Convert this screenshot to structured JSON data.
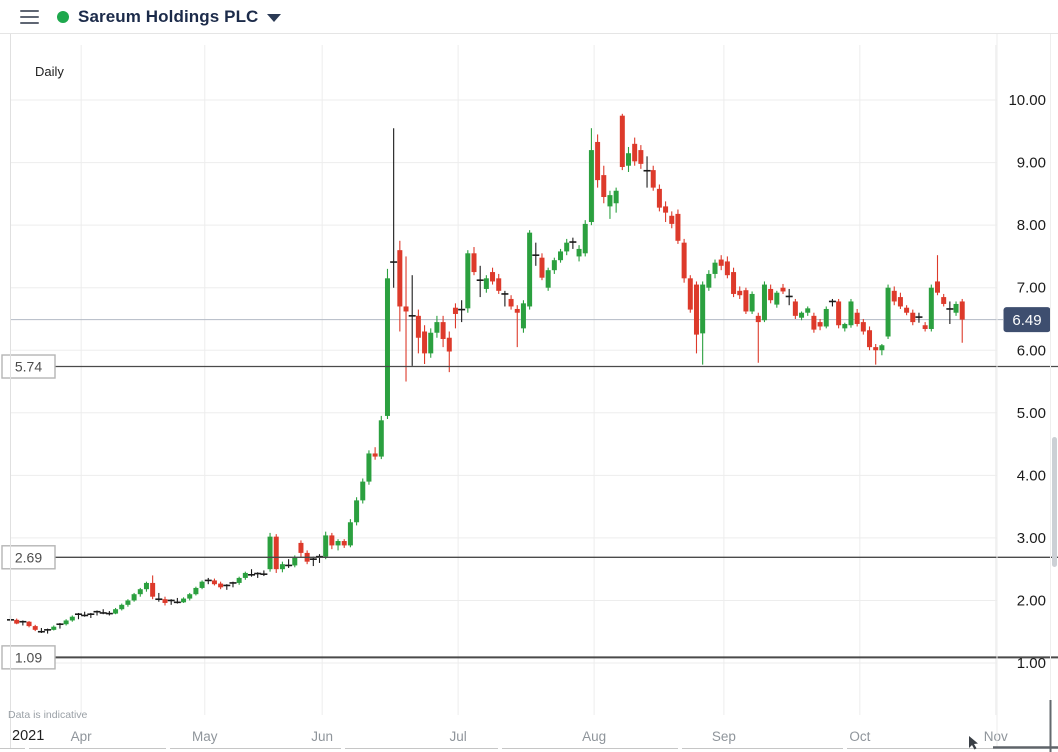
{
  "header": {
    "title": "Sareum Holdings PLC"
  },
  "toolbar": {
    "timeframe": "Daily"
  },
  "footer": {
    "disclaimer": "Data is indicative",
    "year_label": "2021"
  },
  "chart_data": {
    "type": "candlestick",
    "title": "Sareum Holdings PLC",
    "timeframe": "Daily",
    "y_axis": {
      "ticks": [
        10,
        9,
        8,
        7,
        6,
        5,
        4,
        3,
        2,
        1
      ],
      "range": [
        0.4,
        10.9
      ]
    },
    "x_axis": {
      "year": "2021",
      "months": [
        "Apr",
        "May",
        "Jun",
        "Jul",
        "Aug",
        "Sep",
        "Oct",
        "Nov"
      ]
    },
    "support_levels": [
      {
        "label": "5.74",
        "price": 5.74
      },
      {
        "label": "2.69",
        "price": 2.69
      },
      {
        "label": "1.09",
        "price": 1.09
      }
    ],
    "last_price": {
      "label": "6.49",
      "price": 6.49
    },
    "colors": {
      "up": "#2ba03f",
      "down": "#dd3a2b",
      "neutral": "#1a1a1a",
      "badge": "#3e4e6f",
      "grid": "#ededed"
    },
    "candles": [
      [
        1.73,
        1.76,
        1.66,
        1.69
      ],
      [
        1.69,
        1.71,
        1.62,
        1.63
      ],
      [
        1.64,
        1.68,
        1.6,
        1.66
      ],
      [
        1.66,
        1.67,
        1.57,
        1.59
      ],
      [
        1.59,
        1.61,
        1.51,
        1.53
      ],
      [
        1.53,
        1.56,
        1.48,
        1.5
      ],
      [
        1.5,
        1.55,
        1.47,
        1.53
      ],
      [
        1.53,
        1.6,
        1.52,
        1.58
      ],
      [
        1.58,
        1.64,
        1.55,
        1.62
      ],
      [
        1.62,
        1.7,
        1.6,
        1.68
      ],
      [
        1.68,
        1.76,
        1.66,
        1.74
      ],
      [
        1.74,
        1.8,
        1.7,
        1.78
      ],
      [
        1.78,
        1.82,
        1.74,
        1.76
      ],
      [
        1.76,
        1.8,
        1.72,
        1.78
      ],
      [
        1.78,
        1.84,
        1.76,
        1.82
      ],
      [
        1.82,
        1.86,
        1.78,
        1.8
      ],
      [
        1.8,
        1.83,
        1.76,
        1.79
      ],
      [
        1.79,
        1.88,
        1.78,
        1.86
      ],
      [
        1.86,
        1.95,
        1.84,
        1.93
      ],
      [
        1.93,
        2.02,
        1.9,
        2.0
      ],
      [
        2.0,
        2.12,
        1.98,
        2.1
      ],
      [
        2.1,
        2.2,
        2.06,
        2.18
      ],
      [
        2.18,
        2.3,
        2.14,
        2.28
      ],
      [
        2.28,
        2.4,
        2.02,
        2.06
      ],
      [
        2.06,
        2.12,
        1.98,
        2.02
      ],
      [
        2.02,
        2.06,
        1.92,
        1.96
      ],
      [
        1.96,
        2.02,
        1.93,
        2.0
      ],
      [
        2.0,
        2.04,
        1.95,
        1.97
      ],
      [
        1.97,
        2.05,
        1.96,
        2.03
      ],
      [
        2.03,
        2.12,
        2.0,
        2.1
      ],
      [
        2.1,
        2.22,
        2.08,
        2.2
      ],
      [
        2.2,
        2.32,
        2.18,
        2.3
      ],
      [
        2.3,
        2.36,
        2.26,
        2.32
      ],
      [
        2.32,
        2.35,
        2.24,
        2.26
      ],
      [
        2.27,
        2.3,
        2.18,
        2.21
      ],
      [
        2.21,
        2.26,
        2.17,
        2.24
      ],
      [
        2.24,
        2.3,
        2.21,
        2.28
      ],
      [
        2.28,
        2.38,
        2.25,
        2.36
      ],
      [
        2.36,
        2.46,
        2.33,
        2.44
      ],
      [
        2.44,
        2.5,
        2.38,
        2.41
      ],
      [
        2.41,
        2.45,
        2.36,
        2.43
      ],
      [
        2.43,
        2.48,
        2.39,
        2.42
      ],
      [
        2.5,
        3.08,
        2.46,
        3.02
      ],
      [
        3.02,
        3.06,
        2.44,
        2.5
      ],
      [
        2.5,
        2.62,
        2.45,
        2.58
      ],
      [
        2.58,
        2.66,
        2.52,
        2.56
      ],
      [
        2.56,
        2.72,
        2.53,
        2.68
      ],
      [
        2.92,
        2.96,
        2.68,
        2.76
      ],
      [
        2.76,
        2.8,
        2.58,
        2.62
      ],
      [
        2.62,
        2.7,
        2.55,
        2.66
      ],
      [
        2.66,
        2.74,
        2.6,
        2.7
      ],
      [
        2.7,
        3.1,
        2.66,
        3.04
      ],
      [
        3.04,
        3.08,
        2.82,
        2.88
      ],
      [
        2.88,
        2.98,
        2.8,
        2.95
      ],
      [
        2.95,
        2.98,
        2.84,
        2.88
      ],
      [
        2.88,
        3.3,
        2.85,
        3.25
      ],
      [
        3.25,
        3.65,
        3.2,
        3.6
      ],
      [
        3.6,
        3.95,
        3.55,
        3.9
      ],
      [
        3.9,
        4.4,
        3.85,
        4.35
      ],
      [
        4.35,
        4.45,
        4.25,
        4.3
      ],
      [
        4.3,
        4.95,
        4.26,
        4.88
      ],
      [
        4.95,
        7.3,
        4.9,
        7.15
      ],
      [
        7.38,
        9.55,
        7.0,
        7.41
      ],
      [
        7.6,
        7.75,
        6.3,
        6.7
      ],
      [
        6.7,
        7.5,
        5.5,
        6.62
      ],
      [
        6.58,
        7.2,
        5.75,
        6.55
      ],
      [
        6.55,
        6.65,
        5.95,
        6.2
      ],
      [
        6.3,
        6.4,
        5.78,
        5.95
      ],
      [
        5.95,
        6.35,
        5.88,
        6.28
      ],
      [
        6.28,
        6.55,
        6.2,
        6.45
      ],
      [
        6.45,
        6.55,
        6.05,
        6.18
      ],
      [
        6.2,
        6.3,
        5.65,
        5.98
      ],
      [
        6.68,
        6.75,
        6.35,
        6.58
      ],
      [
        6.62,
        6.8,
        6.45,
        6.65
      ],
      [
        6.67,
        7.6,
        6.6,
        7.55
      ],
      [
        7.55,
        7.65,
        7.2,
        7.25
      ],
      [
        7.1,
        7.35,
        6.85,
        7.12
      ],
      [
        6.98,
        7.2,
        6.92,
        7.15
      ],
      [
        7.25,
        7.32,
        7.05,
        7.1
      ],
      [
        7.15,
        7.22,
        6.9,
        6.95
      ],
      [
        6.88,
        6.95,
        6.7,
        6.9
      ],
      [
        6.82,
        6.88,
        6.65,
        6.7
      ],
      [
        6.66,
        6.72,
        6.05,
        6.6
      ],
      [
        6.35,
        6.8,
        6.28,
        6.75
      ],
      [
        6.7,
        7.92,
        6.65,
        7.88
      ],
      [
        7.5,
        7.72,
        7.35,
        7.52
      ],
      [
        7.48,
        7.55,
        7.12,
        7.16
      ],
      [
        7.0,
        7.32,
        6.95,
        7.28
      ],
      [
        7.28,
        7.48,
        7.22,
        7.44
      ],
      [
        7.44,
        7.62,
        7.4,
        7.58
      ],
      [
        7.58,
        7.78,
        7.52,
        7.72
      ],
      [
        7.7,
        7.8,
        7.62,
        7.73
      ],
      [
        7.5,
        7.68,
        7.42,
        7.62
      ],
      [
        7.55,
        8.08,
        7.5,
        8.02
      ],
      [
        8.05,
        9.55,
        8.0,
        9.2
      ],
      [
        9.33,
        9.45,
        8.6,
        8.72
      ],
      [
        8.8,
        8.95,
        8.35,
        8.45
      ],
      [
        8.3,
        8.55,
        8.1,
        8.48
      ],
      [
        8.35,
        8.6,
        8.2,
        8.55
      ],
      [
        9.75,
        9.78,
        8.88,
        8.93
      ],
      [
        8.95,
        9.25,
        8.85,
        9.15
      ],
      [
        9.3,
        9.4,
        8.95,
        9.02
      ],
      [
        9.2,
        9.28,
        8.9,
        8.98
      ],
      [
        8.85,
        9.1,
        8.6,
        8.87
      ],
      [
        8.88,
        8.95,
        8.55,
        8.6
      ],
      [
        8.58,
        8.65,
        8.22,
        8.28
      ],
      [
        8.3,
        8.38,
        8.05,
        8.2
      ],
      [
        8.15,
        8.22,
        7.95,
        8.02
      ],
      [
        8.18,
        8.25,
        7.7,
        7.75
      ],
      [
        7.72,
        7.78,
        7.08,
        7.15
      ],
      [
        7.15,
        7.2,
        6.6,
        6.65
      ],
      [
        7.05,
        7.1,
        5.95,
        6.25
      ],
      [
        6.27,
        7.1,
        5.77,
        7.05
      ],
      [
        7.0,
        7.28,
        6.95,
        7.22
      ],
      [
        7.22,
        7.45,
        7.15,
        7.4
      ],
      [
        7.45,
        7.52,
        7.28,
        7.35
      ],
      [
        7.42,
        7.5,
        7.15,
        7.2
      ],
      [
        7.25,
        7.32,
        6.85,
        6.9
      ],
      [
        6.95,
        7.02,
        6.82,
        6.88
      ],
      [
        6.96,
        7.0,
        6.58,
        6.62
      ],
      [
        6.62,
        6.94,
        6.58,
        6.9
      ],
      [
        6.55,
        6.6,
        5.8,
        6.45
      ],
      [
        6.48,
        7.1,
        6.45,
        7.05
      ],
      [
        6.98,
        7.05,
        6.75,
        6.8
      ],
      [
        6.73,
        6.95,
        6.68,
        6.92
      ],
      [
        7.0,
        7.06,
        6.9,
        6.94
      ],
      [
        6.85,
        6.98,
        6.72,
        6.86
      ],
      [
        6.78,
        6.82,
        6.5,
        6.55
      ],
      [
        6.52,
        6.62,
        6.48,
        6.6
      ],
      [
        6.6,
        6.7,
        6.55,
        6.67
      ],
      [
        6.55,
        6.6,
        6.28,
        6.33
      ],
      [
        6.45,
        6.5,
        6.32,
        6.38
      ],
      [
        6.38,
        6.7,
        6.35,
        6.66
      ],
      [
        6.76,
        6.82,
        6.7,
        6.78
      ],
      [
        6.78,
        6.82,
        6.35,
        6.4
      ],
      [
        6.35,
        6.44,
        6.3,
        6.42
      ],
      [
        6.4,
        6.82,
        6.36,
        6.78
      ],
      [
        6.6,
        6.66,
        6.38,
        6.42
      ],
      [
        6.45,
        6.5,
        6.25,
        6.3
      ],
      [
        6.32,
        6.38,
        6.0,
        6.05
      ],
      [
        6.05,
        6.1,
        5.77,
        6.0
      ],
      [
        6.0,
        6.1,
        5.92,
        6.08
      ],
      [
        6.22,
        7.05,
        6.18,
        7.0
      ],
      [
        6.95,
        7.02,
        6.72,
        6.78
      ],
      [
        6.85,
        6.92,
        6.66,
        6.7
      ],
      [
        6.68,
        6.72,
        6.56,
        6.6
      ],
      [
        6.6,
        6.65,
        6.4,
        6.45
      ],
      [
        6.52,
        6.6,
        6.44,
        6.53
      ],
      [
        6.4,
        6.45,
        6.3,
        6.34
      ],
      [
        6.34,
        7.05,
        6.3,
        7.0
      ],
      [
        7.1,
        7.52,
        6.88,
        6.92
      ],
      [
        6.85,
        6.9,
        6.7,
        6.74
      ],
      [
        6.67,
        6.78,
        6.42,
        6.66
      ],
      [
        6.6,
        6.78,
        6.55,
        6.74
      ],
      [
        6.78,
        6.82,
        6.12,
        6.49
      ]
    ]
  }
}
